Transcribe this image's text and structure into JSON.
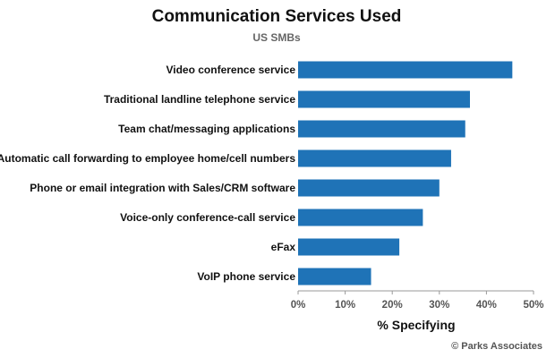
{
  "chart_data": {
    "type": "bar",
    "orientation": "horizontal",
    "title": "Communication Services Used",
    "subtitle": "US SMBs",
    "xlabel": "% Specifying",
    "ylabel": "",
    "categories": [
      "Video conference service",
      "Traditional landline telephone service",
      "Team chat/messaging applications",
      "Automatic call forwarding to employee home/cell numbers",
      "Phone or email integration with Sales/CRM software",
      "Voice-only conference-call service",
      "eFax",
      "VoIP phone service"
    ],
    "values": [
      45.5,
      36.5,
      35.5,
      32.5,
      30.0,
      26.5,
      21.5,
      15.5
    ],
    "xlim": [
      0,
      50
    ],
    "ticks": [
      0,
      10,
      20,
      30,
      40,
      50
    ],
    "tick_labels": [
      "0%",
      "10%",
      "20%",
      "30%",
      "40%",
      "50%"
    ],
    "bar_color": "#1f73b7",
    "grid": false,
    "legend": "none"
  },
  "credit": "© Parks Associates"
}
